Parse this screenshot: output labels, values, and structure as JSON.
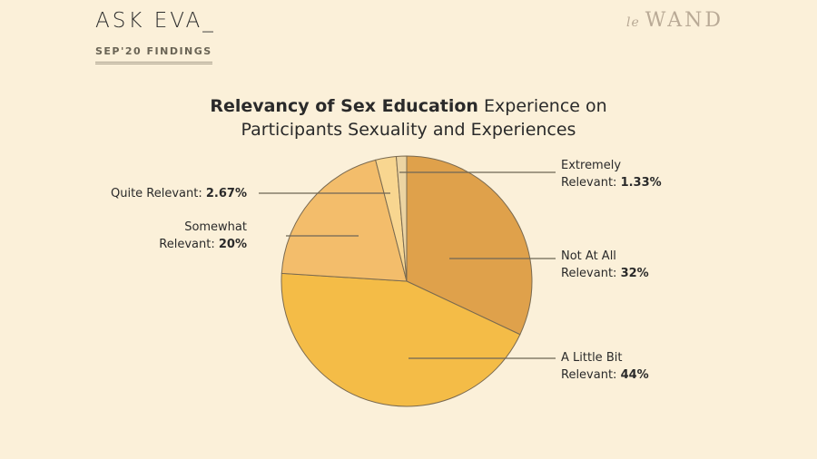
{
  "header": {
    "brand": "ASK EVA_",
    "subtitle": "SEP'20 FINDINGS",
    "logo_prefix": "le",
    "logo_main": "WAND"
  },
  "chart_data": {
    "type": "pie",
    "title_bold": "Relevancy of Sex Education",
    "title_rest": " Experience on",
    "title_line2": "Participants Sexuality and Experiences",
    "start": "12 o'clock, clockwise",
    "slices": [
      {
        "name": "Not At All Relevant",
        "label_a": "Not At All",
        "label_b": "Relevant: ",
        "value_label": "32%",
        "value": 32,
        "color": "#dfa14b"
      },
      {
        "name": "A Little Bit Relevant",
        "label_a": "A Little Bit",
        "label_b": "Relevant: ",
        "value_label": "44%",
        "value": 44,
        "color": "#f4bc47"
      },
      {
        "name": "Somewhat Relevant",
        "label_a": "Somewhat",
        "label_b": "Relevant: ",
        "value_label": "20%",
        "value": 20,
        "color": "#f3bd6b"
      },
      {
        "name": "Quite Relevant",
        "label_a": "",
        "label_b": "Quite Relevant: ",
        "value_label": "2.67%",
        "value": 2.67,
        "color": "#f8d690"
      },
      {
        "name": "Extremely Relevant",
        "label_a": "Extremely",
        "label_b": "Relevant: ",
        "value_label": "1.33%",
        "value": 1.33,
        "color": "#ecd4a2"
      }
    ]
  }
}
